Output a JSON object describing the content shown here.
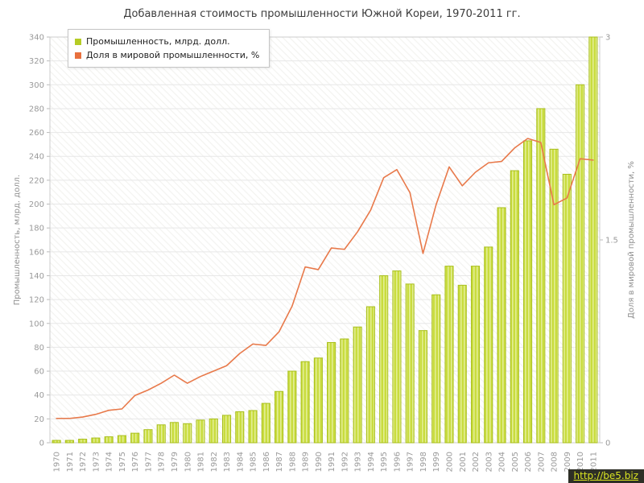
{
  "title": "Добавленная стоимость промышленности Южной Кореи, 1970-2011 гг.",
  "watermark": "http://be5.biz",
  "legend": [
    {
      "label": "Промышленность, млрд. долл.",
      "color": "#b5cc25"
    },
    {
      "label": "Доля в мировой промышленности, %",
      "color": "#e8703e"
    }
  ],
  "chart_data": {
    "type": "bar",
    "title": "Добавленная стоимость промышленности Южной Кореи, 1970-2011 гг.",
    "categories": [
      "1970",
      "1971",
      "1972",
      "1973",
      "1974",
      "1975",
      "1976",
      "1977",
      "1978",
      "1979",
      "1980",
      "1981",
      "1982",
      "1983",
      "1984",
      "1985",
      "1986",
      "1987",
      "1988",
      "1989",
      "1990",
      "1991",
      "1992",
      "1993",
      "1994",
      "1995",
      "1996",
      "1997",
      "1998",
      "1999",
      "2000",
      "2001",
      "2002",
      "2003",
      "2004",
      "2005",
      "2006",
      "2007",
      "2008",
      "2009",
      "2010",
      "2011"
    ],
    "series": [
      {
        "name": "Промышленность, млрд. долл.",
        "type": "bar",
        "axis": "left",
        "color": "#c9dc3e",
        "stroke": "#a9bf1d",
        "values": [
          2,
          2,
          3,
          4,
          5,
          6,
          8,
          11,
          15,
          17,
          16,
          19,
          20,
          23,
          26,
          27,
          33,
          43,
          60,
          68,
          71,
          84,
          87,
          97,
          114,
          140,
          144,
          133,
          94,
          124,
          148,
          132,
          148,
          164,
          197,
          228,
          253,
          280,
          246,
          225,
          300,
          340
        ]
      },
      {
        "name": "Доля в мировой промышленности, %",
        "type": "line",
        "axis": "right",
        "color": "#e8794a",
        "values": [
          0.18,
          0.18,
          0.19,
          0.21,
          0.24,
          0.25,
          0.35,
          0.39,
          0.44,
          0.5,
          0.44,
          0.49,
          0.53,
          0.57,
          0.66,
          0.73,
          0.72,
          0.82,
          1.01,
          1.3,
          1.28,
          1.44,
          1.43,
          1.56,
          1.72,
          1.96,
          2.02,
          1.85,
          1.4,
          1.76,
          2.04,
          1.9,
          2.0,
          2.07,
          2.08,
          2.18,
          2.25,
          2.22,
          1.76,
          1.81,
          2.1,
          2.09
        ]
      }
    ],
    "left_axis": {
      "label": "Промышленность, млрд. долл.",
      "min": 0,
      "max": 340,
      "step": 20
    },
    "right_axis": {
      "label": "Доля в мировой промышленности, %",
      "min": 0,
      "max": 3,
      "ticks": [
        0,
        1.5,
        3
      ]
    },
    "grid": true,
    "legend_position": "top-left"
  }
}
